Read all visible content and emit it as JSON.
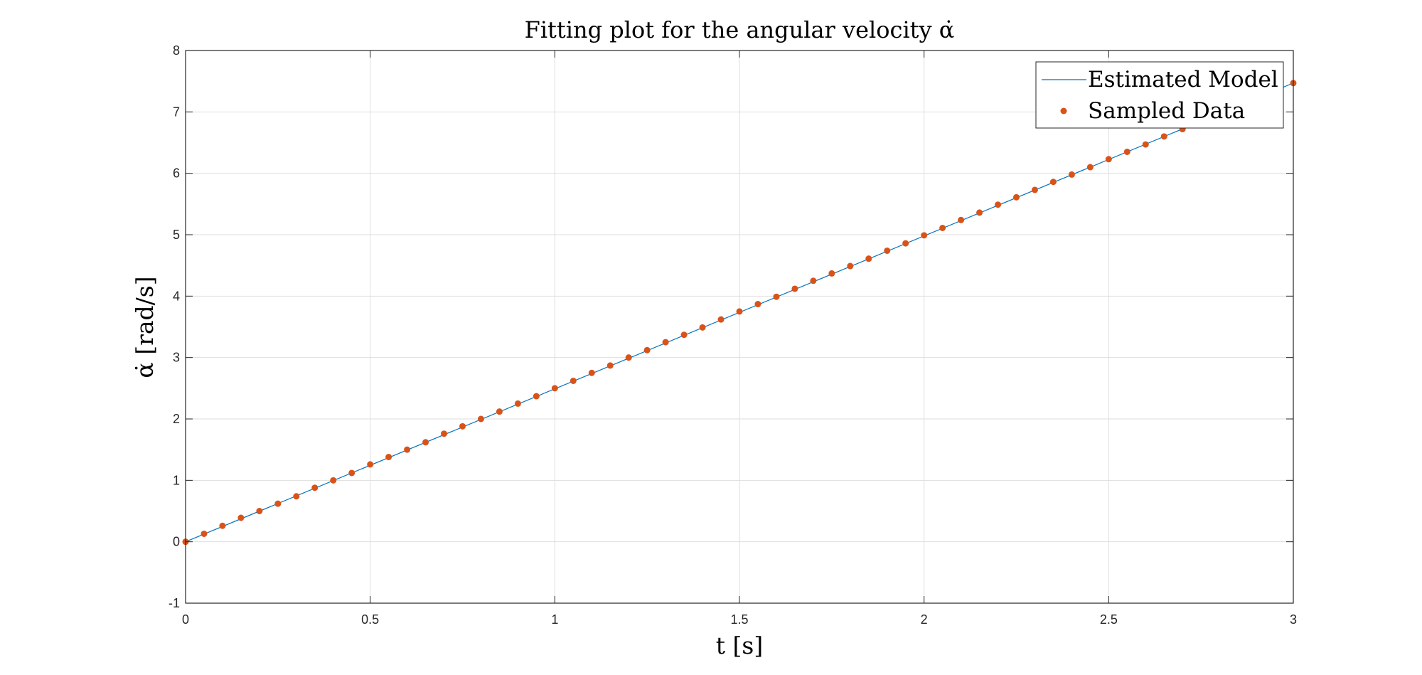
{
  "chart_data": {
    "type": "scatter",
    "title": "Fitting plot for the angular velocity α̇",
    "xlabel": "t [s]",
    "ylabel": "α̇ [rad/s]",
    "xlim": [
      0,
      3
    ],
    "ylim": [
      -1,
      8
    ],
    "x_ticks": [
      "0",
      "0.5",
      "1",
      "1.5",
      "2",
      "2.5",
      "3"
    ],
    "y_ticks": [
      "-1",
      "0",
      "1",
      "2",
      "3",
      "4",
      "5",
      "6",
      "7",
      "8"
    ],
    "grid": true,
    "legend_position": "top-right",
    "legend": [
      "Estimated Model",
      "Sampled Data"
    ],
    "colors": {
      "model": "#0072BD",
      "samples": "#D95319"
    },
    "series": [
      {
        "name": "Estimated Model",
        "kind": "line",
        "x": [
          0,
          3
        ],
        "y": [
          0,
          7.47
        ]
      },
      {
        "name": "Sampled Data",
        "kind": "scatter",
        "x": [
          0.0,
          0.05,
          0.1,
          0.15,
          0.2,
          0.25,
          0.3,
          0.35,
          0.4,
          0.45,
          0.5,
          0.55,
          0.6,
          0.65,
          0.7,
          0.75,
          0.8,
          0.85,
          0.9,
          0.95,
          1.0,
          1.05,
          1.1,
          1.15,
          1.2,
          1.25,
          1.3,
          1.35,
          1.4,
          1.45,
          1.5,
          1.55,
          1.6,
          1.65,
          1.7,
          1.75,
          1.8,
          1.85,
          1.9,
          1.95,
          2.0,
          2.05,
          2.1,
          2.15,
          2.2,
          2.25,
          2.3,
          2.35,
          2.4,
          2.45,
          2.5,
          2.55,
          2.6,
          2.65,
          2.7,
          2.75,
          2.8,
          2.85,
          2.9,
          2.95,
          3.0
        ],
        "y": [
          0.0,
          0.13,
          0.26,
          0.39,
          0.5,
          0.62,
          0.74,
          0.88,
          1.0,
          1.12,
          1.26,
          1.38,
          1.5,
          1.62,
          1.76,
          1.88,
          2.0,
          2.12,
          2.25,
          2.37,
          2.5,
          2.62,
          2.75,
          2.87,
          3.0,
          3.12,
          3.25,
          3.37,
          3.49,
          3.62,
          3.75,
          3.87,
          3.99,
          4.12,
          4.25,
          4.37,
          4.49,
          4.61,
          4.74,
          4.86,
          4.99,
          5.11,
          5.24,
          5.36,
          5.49,
          5.61,
          5.73,
          5.86,
          5.98,
          6.1,
          6.23,
          6.35,
          6.47,
          6.6,
          6.72,
          6.84,
          6.97,
          7.09,
          7.21,
          7.34,
          7.47
        ]
      }
    ]
  }
}
